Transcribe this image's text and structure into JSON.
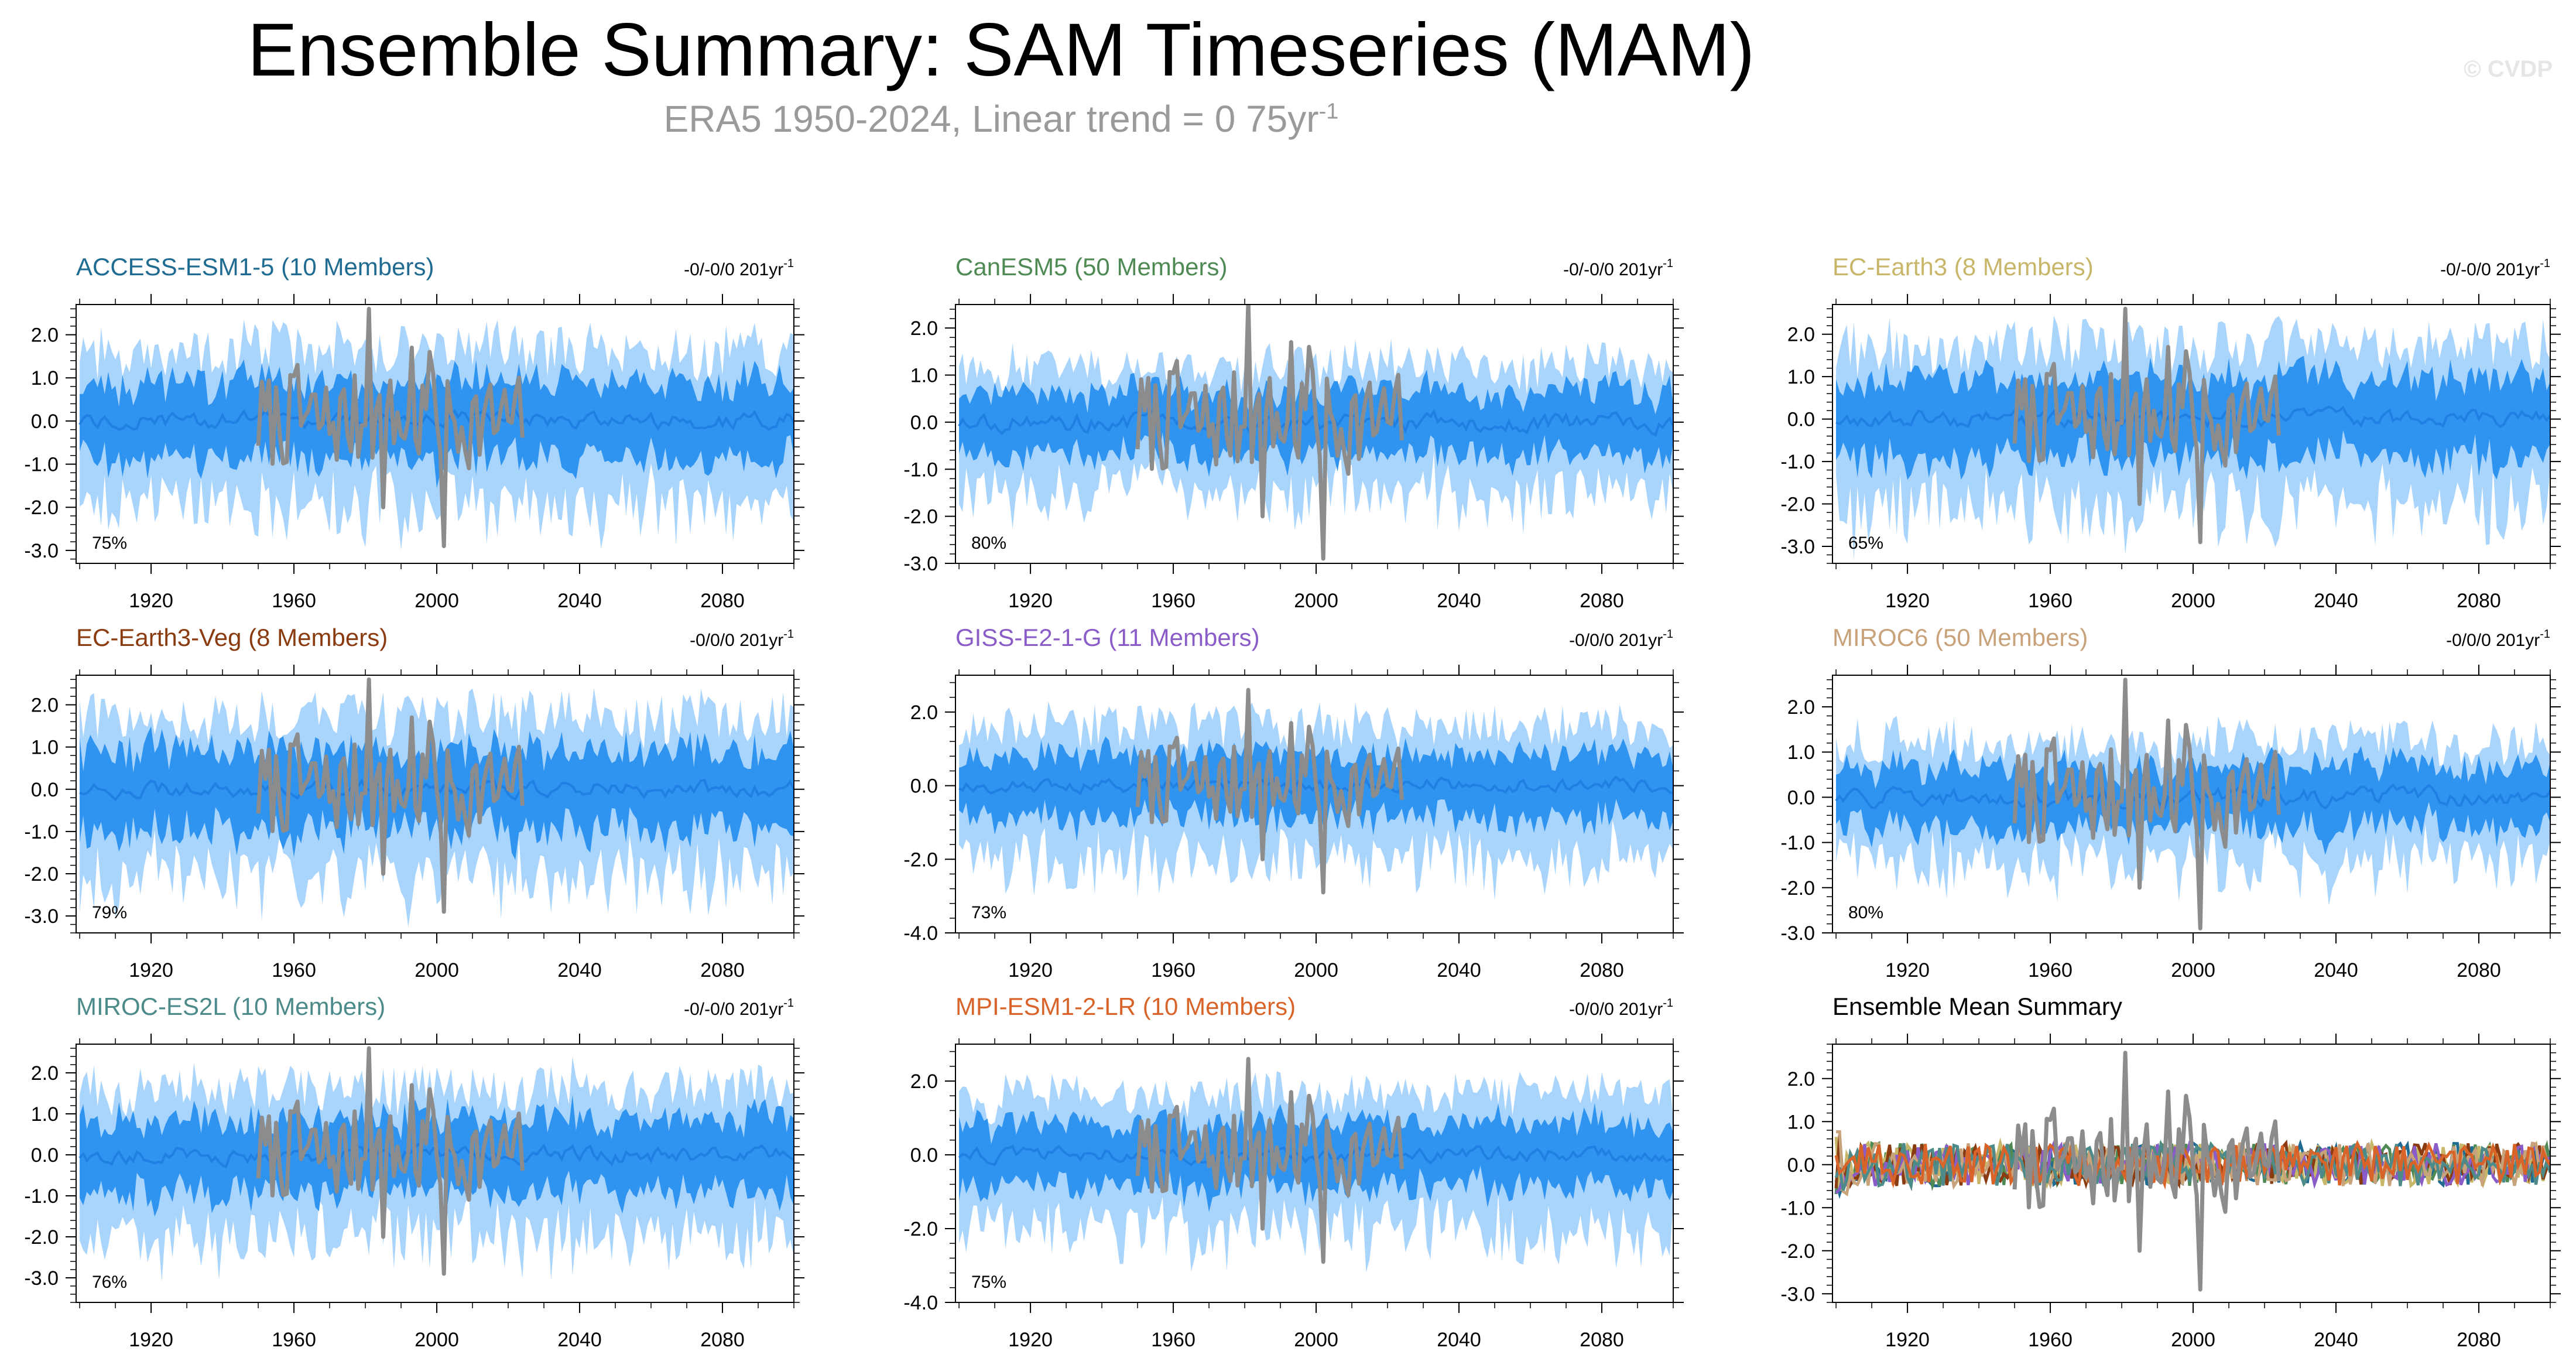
{
  "header": {
    "title": "Ensemble Summary: SAM Timeseries (MAM)",
    "subtitle": "ERA5 1950-2024, Linear trend = 0 75yr",
    "subtitle_sup": "-1",
    "watermark": "© CVDP"
  },
  "colors": {
    "outer_band": "#a9d4fb",
    "inner_band": "#2f93f0",
    "mean_line": "#1f7fe3",
    "obs_line": "#8c8c8c"
  },
  "chart_data": [
    {
      "type": "line",
      "title": "ACCESS-ESM1-5 (10 Members)",
      "title_color": "#1f6b91",
      "trend": "-0/-0/0 201yr",
      "trend_sup": "-1",
      "percent": "75%",
      "ylim": [
        -3.3,
        2.7
      ],
      "yticks": [
        2,
        1,
        0,
        -1,
        -2,
        -3
      ],
      "ytick_labels": [
        "2.0",
        "1.0",
        "0.0",
        "-1.0",
        "-2.0",
        "-3.0"
      ],
      "xlim": [
        1899,
        2100
      ],
      "xticks": [
        1920,
        1960,
        2000,
        2040,
        2080
      ],
      "ytick_minor": 0.2,
      "spread_scale": 1.0,
      "seed": 11
    },
    {
      "type": "line",
      "title": "CanESM5 (50 Members)",
      "title_color": "#4f8a55",
      "trend": "-0/-0/0 201yr",
      "trend_sup": "-1",
      "percent": "80%",
      "ylim": [
        -3.0,
        2.5
      ],
      "yticks": [
        2,
        1,
        0,
        -1,
        -2,
        -3
      ],
      "ytick_labels": [
        "2.0",
        "1.0",
        "0.0",
        "-1.0",
        "-2.0",
        "-3.0"
      ],
      "xlim": [
        1899,
        2100
      ],
      "xticks": [
        1920,
        1960,
        2000,
        2040,
        2080
      ],
      "ytick_minor": 0.2,
      "spread_scale": 0.75,
      "seed": 23
    },
    {
      "type": "line",
      "title": "EC-Earth3 (8 Members)",
      "title_color": "#c8b66a",
      "trend": "-0/-0/0 201yr",
      "trend_sup": "-1",
      "percent": "65%",
      "ylim": [
        -3.4,
        2.7
      ],
      "yticks": [
        2,
        1,
        0,
        -1,
        -2,
        -3
      ],
      "ytick_labels": [
        "2.0",
        "1.0",
        "0.0",
        "-1.0",
        "-2.0",
        "-3.0"
      ],
      "xlim": [
        1899,
        2100
      ],
      "xticks": [
        1920,
        1960,
        2000,
        2040,
        2080
      ],
      "ytick_minor": 0.2,
      "spread_scale": 1.05,
      "seed": 37
    },
    {
      "type": "line",
      "title": "EC-Earth3-Veg (8 Members)",
      "title_color": "#8a3b10",
      "trend": "-0/0/0 201yr",
      "trend_sup": "-1",
      "percent": "79%",
      "ylim": [
        -3.4,
        2.7
      ],
      "yticks": [
        2,
        1,
        0,
        -1,
        -2,
        -3
      ],
      "ytick_labels": [
        "2.0",
        "1.0",
        "0.0",
        "-1.0",
        "-2.0",
        "-3.0"
      ],
      "xlim": [
        1899,
        2100
      ],
      "xticks": [
        1920,
        1960,
        2000,
        2040,
        2080
      ],
      "ytick_minor": 0.2,
      "spread_scale": 1.05,
      "seed": 41
    },
    {
      "type": "line",
      "title": "GISS-E2-1-G (11 Members)",
      "title_color": "#8a5cc8",
      "trend": "-0/0/0 201yr",
      "trend_sup": "-1",
      "percent": "73%",
      "ylim": [
        -4.0,
        3.0
      ],
      "yticks": [
        2,
        0,
        -2,
        -4
      ],
      "ytick_labels": [
        "2.0",
        "0.0",
        "-2.0",
        "-4.0"
      ],
      "xlim": [
        1899,
        2100
      ],
      "xticks": [
        1920,
        1960,
        2000,
        2040,
        2080
      ],
      "ytick_minor": 0.4,
      "spread_scale": 1.0,
      "seed": 53
    },
    {
      "type": "line",
      "title": "MIROC6 (50 Members)",
      "title_color": "#c8a27a",
      "trend": "-0/0/0 201yr",
      "trend_sup": "-1",
      "percent": "80%",
      "ylim": [
        -3.0,
        2.7
      ],
      "yticks": [
        2,
        1,
        0,
        -1,
        -2,
        -3
      ],
      "ytick_labels": [
        "2.0",
        "1.0",
        "0.0",
        "-1.0",
        "-2.0",
        "-3.0"
      ],
      "xlim": [
        1899,
        2100
      ],
      "xticks": [
        1920,
        1960,
        2000,
        2040,
        2080
      ],
      "ytick_minor": 0.2,
      "spread_scale": 0.75,
      "seed": 67
    },
    {
      "type": "line",
      "title": "MIROC-ES2L (10 Members)",
      "title_color": "#4d8a8a",
      "trend": "-0/-0/0 201yr",
      "trend_sup": "-1",
      "percent": "76%",
      "ylim": [
        -3.6,
        2.7
      ],
      "yticks": [
        2,
        1,
        0,
        -1,
        -2,
        -3
      ],
      "ytick_labels": [
        "2.0",
        "1.0",
        "0.0",
        "-1.0",
        "-2.0",
        "-3.0"
      ],
      "xlim": [
        1899,
        2100
      ],
      "xticks": [
        1920,
        1960,
        2000,
        2040,
        2080
      ],
      "ytick_minor": 0.2,
      "spread_scale": 1.0,
      "seed": 71
    },
    {
      "type": "line",
      "title": "MPI-ESM1-2-LR (10 Members)",
      "title_color": "#d8642a",
      "trend": "-0/0/0 201yr",
      "trend_sup": "-1",
      "percent": "75%",
      "ylim": [
        -4.0,
        3.0
      ],
      "yticks": [
        2,
        0,
        -2,
        -4
      ],
      "ytick_labels": [
        "2.0",
        "0.0",
        "-2.0",
        "-4.0"
      ],
      "xlim": [
        1899,
        2100
      ],
      "xticks": [
        1920,
        1960,
        2000,
        2040,
        2080
      ],
      "ytick_minor": 0.4,
      "spread_scale": 1.0,
      "seed": 83
    },
    {
      "type": "line",
      "title": "Ensemble Mean Summary",
      "title_color": "#000000",
      "summary": true,
      "ylim": [
        -3.2,
        2.8
      ],
      "yticks": [
        2,
        1,
        0,
        -1,
        -2,
        -3
      ],
      "ytick_labels": [
        "2.0",
        "1.0",
        "0.0",
        "-1.0",
        "-2.0",
        "-3.0"
      ],
      "xlim": [
        1899,
        2100
      ],
      "xticks": [
        1920,
        1960,
        2000,
        2040,
        2080
      ],
      "ytick_minor": 0.2,
      "series_colors": [
        "#1f6b91",
        "#4f8a55",
        "#c8b66a",
        "#8a3b10",
        "#8a5cc8",
        "#c8a27a",
        "#4d8a8a",
        "#d8642a"
      ],
      "seed": 97
    }
  ]
}
